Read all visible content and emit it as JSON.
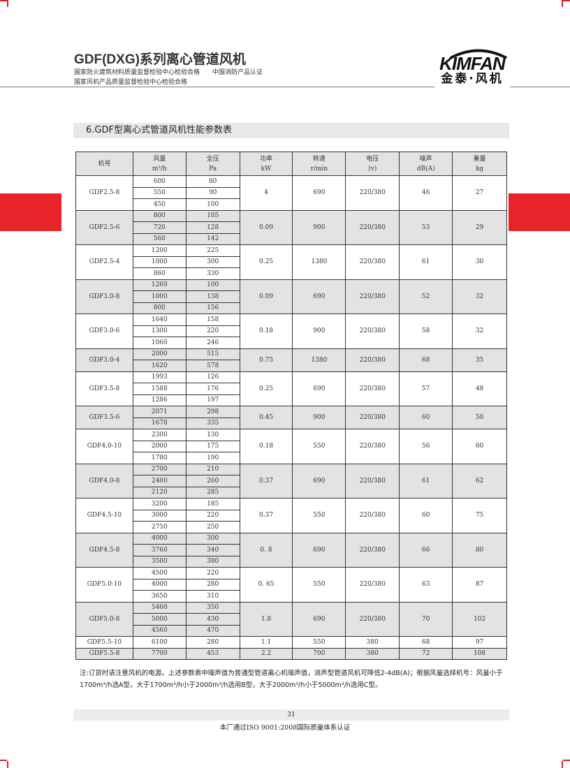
{
  "header": {
    "title": "GDF(DXG)系列离心管道风机",
    "line1": "国家防火建筑材料质量监督检验中心检验合格　　中国消防产品认证",
    "line2": "国家风机产品质量监督检验中心检验合格",
    "logo_en": "KIMFAN",
    "logo_cn": "金泰·风机"
  },
  "section_title": "6.GDF型离心式管道风机性能参数表",
  "accent_color": "#e8232a",
  "table": {
    "headers": [
      [
        "机号",
        ""
      ],
      [
        "风量",
        "m³/h"
      ],
      [
        "全压",
        "Pa"
      ],
      [
        "功率",
        "kW"
      ],
      [
        "转速",
        "r/min"
      ],
      [
        "电压",
        "(v)"
      ],
      [
        "噪声",
        "dB(A)"
      ],
      [
        "重量",
        "kg"
      ]
    ],
    "groups": [
      {
        "model": "GDF2.5-8",
        "flow": [
          "600",
          "550",
          "450"
        ],
        "pressure": [
          "80",
          "90",
          "100"
        ],
        "power": "4",
        "speed": "690",
        "voltage": "220/380",
        "noise": "46",
        "weight": "27"
      },
      {
        "model": "GDF2.5-6",
        "flow": [
          "800",
          "720",
          "560"
        ],
        "pressure": [
          "105",
          "128",
          "142"
        ],
        "power": "0.09",
        "speed": "900",
        "voltage": "220/380",
        "noise": "53",
        "weight": "29"
      },
      {
        "model": "GDF2.5-4",
        "flow": [
          "1200",
          "1000",
          "860"
        ],
        "pressure": [
          "225",
          "300",
          "330"
        ],
        "power": "0.25",
        "speed": "1380",
        "voltage": "220/380",
        "noise": "61",
        "weight": "30"
      },
      {
        "model": "GDF3.0-8",
        "flow": [
          "1260",
          "1000",
          "800"
        ],
        "pressure": [
          "100",
          "138",
          "156"
        ],
        "power": "0.09",
        "speed": "690",
        "voltage": "220/380",
        "noise": "52",
        "weight": "32"
      },
      {
        "model": "GDF3.0-6",
        "flow": [
          "1640",
          "1300",
          "1060"
        ],
        "pressure": [
          "158",
          "220",
          "246"
        ],
        "power": "0.18",
        "speed": "900",
        "voltage": "220/380",
        "noise": "58",
        "weight": "32"
      },
      {
        "model": "GDF3.0-4",
        "flow": [
          "2000",
          "1620"
        ],
        "pressure": [
          "515",
          "578"
        ],
        "power": "0.75",
        "speed": "1380",
        "voltage": "220/380",
        "noise": "68",
        "weight": "35"
      },
      {
        "model": "GDF3.5-8",
        "flow": [
          "1993",
          "1588",
          "1286"
        ],
        "pressure": [
          "126",
          "176",
          "197"
        ],
        "power": "0.25",
        "speed": "690",
        "voltage": "220/380",
        "noise": "57",
        "weight": "48"
      },
      {
        "model": "GDF3.5-6",
        "flow": [
          "2071",
          "1678"
        ],
        "pressure": [
          "298",
          "335"
        ],
        "power": "0.45",
        "speed": "900",
        "voltage": "220/380",
        "noise": "60",
        "weight": "50"
      },
      {
        "model": "GDF4.0-10",
        "flow": [
          "2300",
          "2000",
          "1780"
        ],
        "pressure": [
          "130",
          "175",
          "190"
        ],
        "power": "0.18",
        "speed": "550",
        "voltage": "220/380",
        "noise": "56",
        "weight": "60"
      },
      {
        "model": "GDF4.0-8",
        "flow": [
          "2700",
          "2400",
          "2120"
        ],
        "pressure": [
          "210",
          "260",
          "285"
        ],
        "power": "0.37",
        "speed": "690",
        "voltage": "220/380",
        "noise": "61",
        "weight": "62"
      },
      {
        "model": "GDF4.5-10",
        "flow": [
          "3200",
          "3000",
          "2750"
        ],
        "pressure": [
          "185",
          "220",
          "250"
        ],
        "power": "0.37",
        "speed": "550",
        "voltage": "220/380",
        "noise": "60",
        "weight": "75"
      },
      {
        "model": "GDF4.5-8",
        "flow": [
          "4000",
          "3760",
          "3500"
        ],
        "pressure": [
          "300",
          "340",
          "380"
        ],
        "power": "0. 8",
        "speed": "690",
        "voltage": "220/380",
        "noise": "66",
        "weight": "80"
      },
      {
        "model": "GDF5.0-10",
        "flow": [
          "4500",
          "4000",
          "3650"
        ],
        "pressure": [
          "220",
          "280",
          "310"
        ],
        "power": "0. 65",
        "speed": "550",
        "voltage": "220/380",
        "noise": "63",
        "weight": "87"
      },
      {
        "model": "GDF5.0-8",
        "flow": [
          "5460",
          "5000",
          "4560"
        ],
        "pressure": [
          "350",
          "430",
          "470"
        ],
        "power": "1.8",
        "speed": "690",
        "voltage": "220/380",
        "noise": "70",
        "weight": "102"
      },
      {
        "model": "GDF5.5-10",
        "flow": [
          "6100"
        ],
        "pressure": [
          "280"
        ],
        "power": "1.1",
        "speed": "550",
        "voltage": "380",
        "noise": "68",
        "weight": "97"
      },
      {
        "model": "GDF5.5-8",
        "flow": [
          "7700"
        ],
        "pressure": [
          "453"
        ],
        "power": "2.2",
        "speed": "700",
        "voltage": "380",
        "noise": "72",
        "weight": "108"
      }
    ]
  },
  "note": "注:订货时请注意风机的电源。上述参数表中噪声值为普通型管道离心机噪声值，消声型管道风机可降低2-4dB(A)；根据风量选择机号：风量小于1700m³/h选A型，大于1700m³/h小于2000m³/h选用B型，大于2000m³/h小于5000m³/h选用C型。",
  "page_number": "31",
  "footer": "本厂通过ISO 9001:2008国际质量体系认证"
}
